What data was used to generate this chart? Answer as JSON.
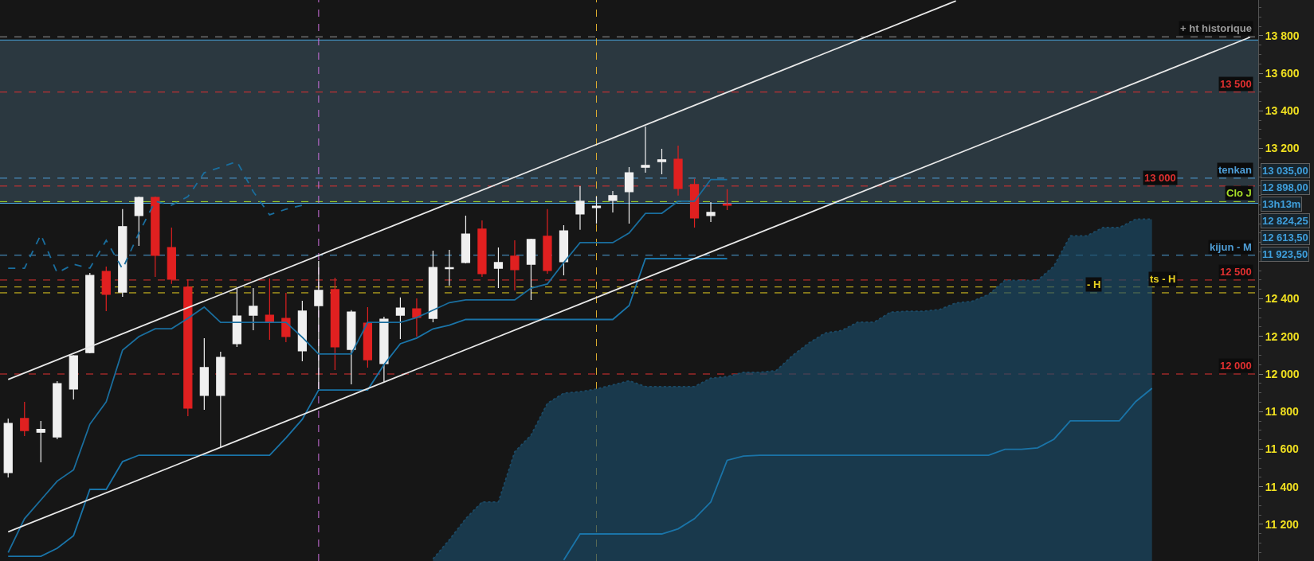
{
  "chart_data": {
    "type": "candlestick",
    "categories": [
      null,
      null,
      null,
      null,
      null,
      null,
      null,
      null,
      null,
      null,
      null,
      null,
      null,
      null,
      null,
      null,
      null,
      null,
      null,
      null,
      null,
      null,
      null,
      null,
      null,
      null,
      null,
      null,
      null,
      null,
      null,
      null,
      null,
      null,
      null,
      null,
      null,
      null,
      null,
      null,
      null,
      null,
      null,
      null,
      null,
      null,
      null,
      null,
      null,
      null,
      null,
      null,
      null,
      null,
      null,
      null,
      null,
      null,
      null,
      null,
      null,
      null,
      null,
      null,
      null,
      null,
      null,
      null,
      null,
      null,
      null,
      null,
      null,
      null,
      null,
      null,
      null
    ],
    "ohlc": [
      [
        11475,
        11763,
        11450,
        11737
      ],
      [
        11763,
        11852,
        11670,
        11699
      ],
      [
        11690,
        11750,
        11530,
        11705
      ],
      [
        11665,
        11962,
        11653,
        11949
      ],
      [
        11920,
        12101,
        11864,
        12097
      ],
      [
        12114,
        12538,
        12110,
        12525
      ],
      [
        12546,
        12572,
        12335,
        12424
      ],
      [
        12436,
        12877,
        12411,
        12784
      ],
      [
        12843,
        12944,
        12682,
        12940
      ],
      [
        12940,
        12944,
        12517,
        12631
      ],
      [
        12673,
        12779,
        12479,
        12504
      ],
      [
        12462,
        12504,
        11776,
        11818
      ],
      [
        11886,
        12191,
        11809,
        12034
      ],
      [
        11886,
        12119,
        11610,
        12089
      ],
      [
        12161,
        12453,
        12144,
        12309
      ],
      [
        12313,
        12457,
        12233,
        12360
      ],
      [
        12313,
        12508,
        12182,
        12275
      ],
      [
        12296,
        12432,
        12169,
        12199
      ],
      [
        12123,
        12390,
        12068,
        12335
      ],
      [
        12364,
        12601,
        11920,
        12445
      ],
      [
        12449,
        12512,
        12021,
        12144
      ],
      [
        12131,
        12340,
        11945,
        12330
      ],
      [
        12271,
        12356,
        12034,
        12076
      ],
      [
        12055,
        12305,
        11958,
        12292
      ],
      [
        12313,
        12407,
        12186,
        12351
      ],
      [
        12347,
        12402,
        12199,
        12301
      ],
      [
        12296,
        12656,
        12275,
        12567
      ],
      [
        12560,
        12661,
        12470,
        12566
      ],
      [
        12593,
        12843,
        12589,
        12745
      ],
      [
        12771,
        12817,
        12517,
        12534
      ],
      [
        12563,
        12673,
        12457,
        12593
      ],
      [
        12627,
        12711,
        12445,
        12555
      ],
      [
        12584,
        12720,
        12394,
        12716
      ],
      [
        12733,
        12877,
        12534,
        12551
      ],
      [
        12597,
        12792,
        12525,
        12762
      ],
      [
        12851,
        12999,
        12767,
        12919
      ],
      [
        12885,
        12944,
        12800,
        12893
      ],
      [
        12923,
        12974,
        12860,
        12949
      ],
      [
        12970,
        13101,
        12800,
        13071
      ],
      [
        13100,
        13317,
        13071,
        13110
      ],
      [
        13130,
        13198,
        13063,
        13140
      ],
      [
        13143,
        13215,
        12949,
        12987
      ],
      [
        13008,
        13038,
        12779,
        12830
      ],
      [
        12843,
        12915,
        12809,
        12860
      ],
      [
        12905,
        12983,
        12872,
        12898
      ],
      null,
      null,
      null,
      null,
      null,
      null,
      null,
      null,
      null,
      null,
      null,
      null,
      null,
      null,
      null,
      null,
      null,
      null,
      null,
      null,
      null,
      null,
      null,
      null,
      null,
      null,
      null,
      null,
      null,
      null,
      null,
      null
    ],
    "colors": [
      "#f0f0f0",
      "#e02020",
      "#f0f0f0",
      "#f0f0f0",
      "#f0f0f0",
      "#f0f0f0",
      "#e02020",
      "#f0f0f0",
      "#f0f0f0",
      "#e02020",
      "#e02020",
      "#e02020",
      "#f0f0f0",
      "#f0f0f0",
      "#f0f0f0",
      "#f0f0f0",
      "#e02020",
      "#e02020",
      "#f0f0f0",
      "#f0f0f0",
      "#e02020",
      "#f0f0f0",
      "#e02020",
      "#f0f0f0",
      "#f0f0f0",
      "#e02020",
      "#f0f0f0",
      "#f0f0f0",
      "#f0f0f0",
      "#e02020",
      "#f0f0f0",
      "#e02020",
      "#f0f0f0",
      "#e02020",
      "#f0f0f0",
      "#f0f0f0",
      "#f0f0f0",
      "#f0f0f0",
      "#f0f0f0",
      "#f0f0f0",
      "#f0f0f0",
      "#e02020",
      "#e02020",
      "#f0f0f0",
      "#e02020",
      null,
      null,
      null,
      null,
      null,
      null,
      null,
      null,
      null,
      null,
      null,
      null,
      null,
      null,
      null,
      null,
      null,
      null,
      null,
      null,
      null,
      null,
      null,
      null,
      null,
      null,
      null,
      null,
      null,
      null,
      null,
      null
    ],
    "series": [
      {
        "type": "area",
        "color": "#1b4a66",
        "line_style": "dotted",
        "values": [
          null,
          null,
          null,
          null,
          null,
          null,
          null,
          null,
          null,
          null,
          null,
          null,
          null,
          null,
          null,
          null,
          null,
          null,
          null,
          null,
          null,
          null,
          null,
          null,
          null,
          null,
          11016,
          11118,
          11230,
          11319,
          11319,
          11586,
          11675,
          11844,
          11898,
          11906,
          11920,
          11942,
          11964,
          11933,
          11933,
          11933,
          11933,
          11978,
          11986,
          12009,
          12009,
          12018,
          12098,
          12165,
          12218,
          12231,
          12276,
          12276,
          12329,
          12334,
          12334,
          12343,
          12378,
          12387,
          12423,
          12498,
          12498,
          12498,
          12574,
          12735,
          12735,
          12779,
          12779,
          12824,
          12824,
          null,
          null,
          null,
          null,
          null,
          null
        ]
      },
      {
        "type": "line",
        "color": "#1a74a8",
        "values": [
          null,
          null,
          null,
          null,
          null,
          null,
          null,
          null,
          null,
          null,
          null,
          null,
          null,
          null,
          null,
          null,
          null,
          null,
          null,
          null,
          null,
          null,
          null,
          null,
          null,
          null,
          null,
          null,
          null,
          null,
          null,
          null,
          null,
          null,
          11010,
          11149,
          11149,
          11149,
          11149,
          11149,
          11149,
          11176,
          11230,
          11319,
          11541,
          11563,
          11568,
          11568,
          11568,
          11568,
          11568,
          11568,
          11568,
          11568,
          11568,
          11568,
          11568,
          11568,
          11568,
          11568,
          11568,
          11599,
          11599,
          11607,
          11653,
          11751,
          11751,
          11751,
          11751,
          11853,
          11924,
          null,
          null,
          null,
          null,
          null,
          null
        ]
      },
      {
        "type": "line",
        "color": "#1a6e9e",
        "values": [
          11050,
          11230,
          11330,
          11430,
          11490,
          11733,
          11852,
          12127,
          12199,
          12241,
          12241,
          12296,
          12356,
          12275,
          12275,
          12275,
          12275,
          12275,
          12195,
          12106,
          12106,
          12106,
          12275,
          12275,
          12275,
          12300,
          12340,
          12380,
          12394,
          12394,
          12394,
          12394,
          12457,
          12479,
          12593,
          12699,
          12699,
          12699,
          12750,
          12855,
          12855,
          12919,
          12919,
          13035,
          13035,
          null,
          null,
          null,
          null,
          null,
          null,
          null,
          null,
          null,
          null,
          null,
          null,
          null,
          null,
          null,
          null,
          null,
          null,
          null,
          null,
          null,
          null,
          null,
          null,
          null,
          null,
          null,
          null,
          null,
          null,
          null,
          null
        ]
      },
      {
        "type": "line",
        "color": "#1a74a8",
        "values": [
          11030,
          11030,
          11030,
          11073,
          11140,
          11386,
          11386,
          11534,
          11568,
          11568,
          11568,
          11568,
          11568,
          11568,
          11568,
          11568,
          11568,
          11660,
          11759,
          11915,
          11915,
          11915,
          11915,
          12050,
          12161,
          12191,
          12240,
          12260,
          12290,
          12290,
          12290,
          12290,
          12290,
          12290,
          12290,
          12290,
          12290,
          12290,
          12364,
          12614,
          12614,
          12614,
          12614,
          12614,
          12614,
          null,
          null,
          null,
          null,
          null,
          null,
          null,
          null,
          null,
          null,
          null,
          null,
          null,
          null,
          null,
          null,
          null,
          null,
          null,
          null,
          null,
          null,
          null,
          null,
          null,
          null,
          null,
          null,
          null,
          null,
          null,
          null
        ]
      },
      {
        "type": "line",
        "color": "#1a6e9e",
        "line_style": "dashed",
        "values": [
          12563,
          12563,
          12741,
          12538,
          12584,
          12563,
          12711,
          12559,
          12750,
          12919,
          12898,
          12944,
          13071,
          13100,
          13131,
          12970,
          12847,
          12877,
          12898,
          null,
          null,
          null,
          null,
          null,
          null,
          null,
          null,
          null,
          null,
          null,
          null,
          null,
          null,
          null,
          null,
          null,
          null,
          null,
          null,
          null,
          null,
          null,
          null,
          null,
          null,
          null,
          null,
          null,
          null,
          null,
          null,
          null,
          null,
          null,
          null,
          null,
          null,
          null,
          null,
          null,
          null,
          null,
          null,
          null,
          null,
          null,
          null,
          null,
          null,
          null,
          null,
          null,
          null,
          null,
          null,
          null,
          null
        ]
      },
      {
        "type": "line",
        "color": "#e8e8e8",
        "values": [
          11971,
          null,
          null,
          null,
          null,
          null,
          null,
          null,
          null,
          null,
          null,
          null,
          null,
          null,
          null,
          null,
          null,
          null,
          null,
          null,
          null,
          null,
          null,
          null,
          null,
          null,
          null,
          null,
          null,
          null,
          null,
          null,
          null,
          null,
          null,
          null,
          null,
          null,
          null,
          null,
          null,
          null,
          null,
          null,
          null,
          null,
          null,
          null,
          null,
          null,
          null,
          null,
          null,
          null,
          null,
          null,
          null,
          null,
          13985,
          null,
          null,
          null,
          null,
          null,
          null,
          null,
          null,
          null,
          null,
          null,
          null,
          null,
          null,
          null,
          null,
          null,
          null
        ]
      },
      {
        "type": "line",
        "color": "#e8e8e8",
        "values": [
          11160,
          null,
          null,
          null,
          null,
          null,
          null,
          null,
          null,
          null,
          null,
          null,
          null,
          null,
          null,
          null,
          null,
          null,
          null,
          null,
          null,
          null,
          null,
          null,
          null,
          null,
          null,
          null,
          null,
          null,
          null,
          null,
          null,
          null,
          null,
          null,
          null,
          null,
          null,
          null,
          null,
          null,
          null,
          null,
          null,
          null,
          null,
          null,
          null,
          null,
          null,
          null,
          null,
          null,
          null,
          null,
          null,
          null,
          null,
          null,
          null,
          null,
          null,
          null,
          null,
          null,
          null,
          null,
          null,
          null,
          null,
          null,
          null,
          null,
          null,
          null,
          13792
        ]
      }
    ],
    "ylim": [
      11005,
      13990
    ],
    "yticks": [
      {
        "value": 11200,
        "label": "11 200"
      },
      {
        "value": 11400,
        "label": "11 400"
      },
      {
        "value": 11600,
        "label": "11 600"
      },
      {
        "value": 11800,
        "label": "11 800"
      },
      {
        "value": 12000,
        "label": "12 000"
      },
      {
        "value": 12200,
        "label": "12 200"
      },
      {
        "value": 12400,
        "label": "12 400"
      },
      {
        "value": 13200,
        "label": "13 200"
      },
      {
        "value": 13400,
        "label": "13 400"
      },
      {
        "value": 13600,
        "label": "13 600"
      },
      {
        "value": 13800,
        "label": "13 800"
      }
    ],
    "tick_labels": "y",
    "bands": [
      {
        "axis": "y",
        "from": 12908,
        "to": 13777,
        "color": "#2b3840"
      }
    ],
    "ref_lines": [
      {
        "axis": "y",
        "value": 13794,
        "label": "+ ht historique",
        "color": "#9a9a9a",
        "line_style": "dashed"
      },
      {
        "axis": "y",
        "value": 13777,
        "color": "#4aa8e0",
        "line_style": "solid"
      },
      {
        "axis": "y",
        "value": 12908,
        "color": "#4aa8e0",
        "line_style": "solid"
      },
      {
        "axis": "y",
        "value": 13500,
        "label": "13 500",
        "color": "#e03030",
        "line_style": "dashed"
      },
      {
        "axis": "y",
        "value": 13042,
        "label": "tenkan",
        "color": "#4f9fd8",
        "line_style": "dashed"
      },
      {
        "axis": "y",
        "value": 13000,
        "label": "13 000",
        "color": "#e03030",
        "line_style": "dashed"
      },
      {
        "axis": "y",
        "value": 12917,
        "label": "Clo J",
        "color": "#a8e028",
        "line_style": "dashed"
      },
      {
        "axis": "y",
        "value": 12632,
        "label": "kijun - M",
        "color": "#4f9fd8",
        "line_style": "dashed"
      },
      {
        "axis": "y",
        "value": 12500,
        "label": "12 500",
        "color": "#e03030",
        "line_style": "dashed"
      },
      {
        "axis": "y",
        "value": 12463,
        "label": "ts - H",
        "color": "#e8d020",
        "line_style": "dashed"
      },
      {
        "axis": "y",
        "value": 12432,
        "label": "- H",
        "color": "#e8d020",
        "line_style": "dashed"
      },
      {
        "axis": "y",
        "value": 12000,
        "label": "12 000",
        "color": "#e03030",
        "line_style": "dashed"
      }
    ],
    "annotations": [
      "13 035,00",
      "12 898,00",
      "13h13m",
      "12 824,25",
      "12 613,50",
      "11 923,50"
    ]
  }
}
